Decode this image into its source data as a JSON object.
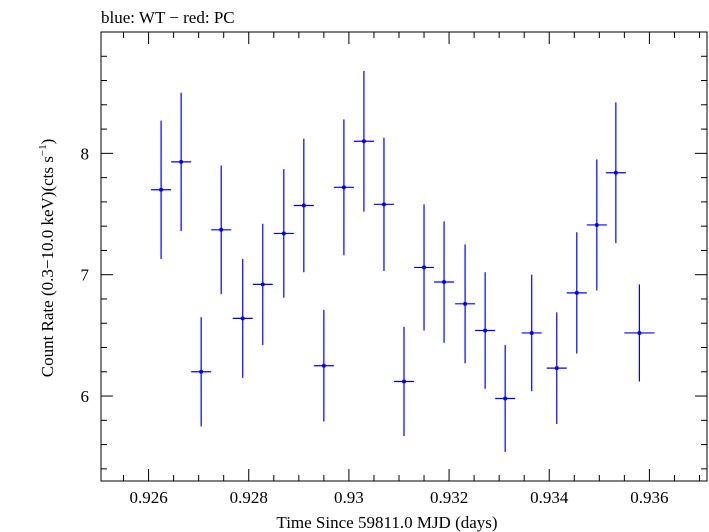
{
  "chart_data": {
    "type": "scatter",
    "title": "blue: WT − red: PC",
    "xlabel": "Time Since 59811.0 MJD (days)",
    "ylabel_main": "Count Rate (0.3−10.0 keV)(cts s",
    "ylabel_exp": "−1",
    "ylabel_close": ")",
    "xlim": [
      0.92505,
      0.93715
    ],
    "ylim": [
      5.3,
      9.0
    ],
    "x_ticks": [
      {
        "value": 0.926,
        "label": "0.926"
      },
      {
        "value": 0.928,
        "label": "0.928"
      },
      {
        "value": 0.93,
        "label": "0.93"
      },
      {
        "value": 0.932,
        "label": "0.932"
      },
      {
        "value": 0.934,
        "label": "0.934"
      },
      {
        "value": 0.936,
        "label": "0.936"
      }
    ],
    "y_ticks": [
      {
        "value": 6,
        "label": "6"
      },
      {
        "value": 7,
        "label": "7"
      },
      {
        "value": 8,
        "label": "8"
      }
    ],
    "series": [
      {
        "color": "#0000ff",
        "points": [
          {
            "x": 0.92625,
            "y": 7.7,
            "xerr": 0.0002,
            "yerr": 0.57
          },
          {
            "x": 0.92665,
            "y": 7.93,
            "xerr": 0.0002,
            "yerr": 0.57
          },
          {
            "x": 0.92705,
            "y": 6.2,
            "xerr": 0.0002,
            "yerr": 0.45
          },
          {
            "x": 0.92745,
            "y": 7.37,
            "xerr": 0.0002,
            "yerr": 0.53
          },
          {
            "x": 0.92788,
            "y": 6.64,
            "xerr": 0.0002,
            "yerr": 0.49
          },
          {
            "x": 0.92828,
            "y": 6.92,
            "xerr": 0.0002,
            "yerr": 0.5
          },
          {
            "x": 0.9287,
            "y": 7.34,
            "xerr": 0.0002,
            "yerr": 0.53
          },
          {
            "x": 0.9291,
            "y": 7.57,
            "xerr": 0.0002,
            "yerr": 0.55
          },
          {
            "x": 0.9295,
            "y": 6.25,
            "xerr": 0.0002,
            "yerr": 0.46
          },
          {
            "x": 0.9299,
            "y": 7.72,
            "xerr": 0.0002,
            "yerr": 0.56
          },
          {
            "x": 0.9303,
            "y": 8.1,
            "xerr": 0.0002,
            "yerr": 0.58
          },
          {
            "x": 0.9307,
            "y": 7.58,
            "xerr": 0.0002,
            "yerr": 0.55
          },
          {
            "x": 0.9311,
            "y": 6.12,
            "xerr": 0.0002,
            "yerr": 0.45
          },
          {
            "x": 0.9315,
            "y": 7.06,
            "xerr": 0.0002,
            "yerr": 0.52
          },
          {
            "x": 0.9319,
            "y": 6.94,
            "xerr": 0.0002,
            "yerr": 0.5
          },
          {
            "x": 0.93232,
            "y": 6.76,
            "xerr": 0.0002,
            "yerr": 0.49
          },
          {
            "x": 0.93272,
            "y": 6.54,
            "xerr": 0.0002,
            "yerr": 0.48
          },
          {
            "x": 0.93312,
            "y": 5.98,
            "xerr": 0.0002,
            "yerr": 0.44
          },
          {
            "x": 0.93365,
            "y": 6.52,
            "xerr": 0.0002,
            "yerr": 0.48
          },
          {
            "x": 0.93415,
            "y": 6.23,
            "xerr": 0.0002,
            "yerr": 0.46
          },
          {
            "x": 0.93455,
            "y": 6.85,
            "xerr": 0.0002,
            "yerr": 0.5
          },
          {
            "x": 0.93495,
            "y": 7.41,
            "xerr": 0.0002,
            "yerr": 0.54
          },
          {
            "x": 0.93533,
            "y": 7.84,
            "xerr": 0.0002,
            "yerr": 0.58
          },
          {
            "x": 0.9358,
            "y": 6.52,
            "xerr": 0.0003,
            "yerr": 0.4
          }
        ]
      }
    ]
  }
}
